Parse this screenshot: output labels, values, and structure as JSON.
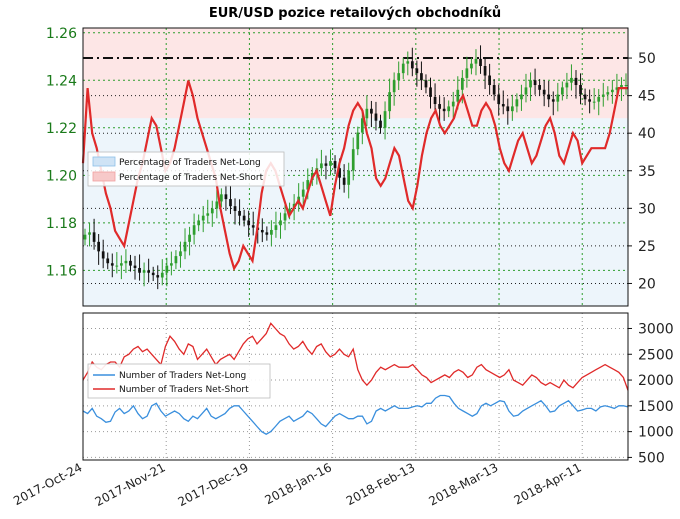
{
  "chart_data": [
    {
      "type": "line",
      "title": "EUR/USD pozice retailových obchodníků",
      "x_ticks": [
        "2017-Oct-24",
        "2017-Nov-21",
        "2017-Dec-19",
        "2018-Jan-16",
        "2018-Feb-13",
        "2018-Mar-13",
        "2018-Apr-11"
      ],
      "price_axis": {
        "side": "left",
        "color": "#1a7a1a",
        "ticks": [
          1.16,
          1.18,
          1.2,
          1.22,
          1.24,
          1.26
        ],
        "range": [
          1.145,
          1.262
        ]
      },
      "percent_axis": {
        "side": "right",
        "ticks": [
          20,
          25,
          30,
          35,
          40,
          45,
          50
        ],
        "range": [
          17,
          54
        ]
      },
      "price_series": {
        "style": "candlestick",
        "colors": {
          "up": "#2e9e2e",
          "down": "#111111"
        },
        "close": [
          1.175,
          1.176,
          1.172,
          1.168,
          1.165,
          1.163,
          1.162,
          1.162,
          1.163,
          1.164,
          1.162,
          1.161,
          1.159,
          1.16,
          1.159,
          1.158,
          1.157,
          1.159,
          1.162,
          1.163,
          1.166,
          1.168,
          1.172,
          1.175,
          1.179,
          1.181,
          1.183,
          1.184,
          1.186,
          1.189,
          1.192,
          1.19,
          1.187,
          1.185,
          1.183,
          1.181,
          1.179,
          1.178,
          1.177,
          1.176,
          1.175,
          1.177,
          1.179,
          1.181,
          1.184,
          1.186,
          1.188,
          1.191,
          1.194,
          1.198,
          1.201,
          1.203,
          1.205,
          1.204,
          1.206,
          1.203,
          1.199,
          1.196,
          1.202,
          1.211,
          1.218,
          1.224,
          1.228,
          1.226,
          1.223,
          1.22,
          1.227,
          1.235,
          1.24,
          1.243,
          1.247,
          1.248,
          1.245,
          1.243,
          1.24,
          1.237,
          1.233,
          1.23,
          1.228,
          1.227,
          1.229,
          1.231,
          1.236,
          1.241,
          1.245,
          1.247,
          1.249,
          1.246,
          1.242,
          1.238,
          1.234,
          1.23,
          1.229,
          1.227,
          1.229,
          1.232,
          1.234,
          1.237,
          1.24,
          1.238,
          1.236,
          1.234,
          1.232,
          1.231,
          1.234,
          1.237,
          1.239,
          1.241,
          1.238,
          1.234,
          1.232,
          1.231,
          1.231,
          1.233,
          1.234,
          1.235,
          1.236,
          1.237,
          1.238,
          1.238
        ],
        "ohlc_note": "daily candles, Oct 2017 – Apr 2018"
      },
      "series": [
        {
          "name": "Percentage of Traders Net-Long",
          "fill": "#cfe3f5",
          "line": "#8cc0e8"
        },
        {
          "name": "Percentage of Traders Net-Short",
          "fill": "#f7c9c9",
          "line": "#e02a2a",
          "values": [
            36,
            46,
            40,
            38,
            35,
            32,
            30,
            27,
            26,
            25,
            28,
            31,
            34,
            36,
            39,
            42,
            41,
            38,
            35,
            36,
            38,
            41,
            44,
            47,
            45,
            42,
            40,
            38,
            36,
            34,
            30,
            27,
            24,
            22,
            23,
            25,
            24,
            23,
            27,
            32,
            35,
            36,
            35,
            33,
            31,
            29,
            30,
            31,
            30,
            32,
            34,
            35,
            33,
            31,
            29,
            33,
            36,
            38,
            41,
            43,
            44,
            43,
            40,
            38,
            34,
            33,
            34,
            36,
            38,
            37,
            34,
            31,
            30,
            33,
            37,
            40,
            42,
            43,
            41,
            40,
            41,
            42,
            44,
            45,
            43,
            41,
            41,
            43,
            44,
            43,
            41,
            38,
            36,
            35,
            37,
            39,
            40,
            38,
            36,
            37,
            39,
            41,
            42,
            40,
            37,
            36,
            38,
            40,
            39,
            36,
            37,
            38,
            38,
            38,
            38,
            40,
            43,
            46,
            46,
            46
          ]
        }
      ],
      "reference_lines": [
        {
          "value": 50,
          "style": "dash-dot",
          "color": "#111111"
        }
      ],
      "grid": true,
      "legend": "center-left"
    },
    {
      "type": "line",
      "x_ticks": [
        "2017-Oct-24",
        "2017-Nov-21",
        "2017-Dec-19",
        "2018-Jan-16",
        "2018-Feb-13",
        "2018-Mar-13",
        "2018-Apr-11"
      ],
      "y_axis": {
        "side": "right",
        "ticks": [
          500,
          1000,
          1500,
          2000,
          2500,
          3000
        ],
        "range": [
          450,
          3300
        ]
      },
      "series": [
        {
          "name": "Number of Traders Net-Long",
          "color": "#3a8fdd",
          "values": [
            1400,
            1350,
            1450,
            1300,
            1250,
            1180,
            1200,
            1380,
            1450,
            1350,
            1400,
            1500,
            1350,
            1250,
            1300,
            1500,
            1550,
            1400,
            1300,
            1350,
            1400,
            1350,
            1250,
            1200,
            1300,
            1250,
            1350,
            1450,
            1300,
            1250,
            1300,
            1350,
            1450,
            1500,
            1500,
            1400,
            1300,
            1200,
            1100,
            1000,
            950,
            1000,
            1100,
            1200,
            1250,
            1300,
            1200,
            1250,
            1300,
            1400,
            1350,
            1250,
            1150,
            1100,
            1200,
            1300,
            1350,
            1300,
            1250,
            1250,
            1300,
            1300,
            1150,
            1200,
            1400,
            1450,
            1400,
            1450,
            1500,
            1450,
            1450,
            1450,
            1480,
            1500,
            1480,
            1550,
            1550,
            1650,
            1700,
            1700,
            1680,
            1550,
            1450,
            1400,
            1350,
            1300,
            1350,
            1500,
            1550,
            1500,
            1550,
            1600,
            1580,
            1400,
            1300,
            1320,
            1400,
            1450,
            1500,
            1550,
            1600,
            1500,
            1380,
            1400,
            1500,
            1550,
            1600,
            1500,
            1400,
            1420,
            1450,
            1450,
            1400,
            1480,
            1500,
            1480,
            1450,
            1500,
            1500,
            1480
          ]
        },
        {
          "name": "Number of Traders Net-Short",
          "color": "#e02a2a",
          "values": [
            2000,
            2150,
            2350,
            2250,
            2200,
            2300,
            2350,
            2350,
            2250,
            2450,
            2500,
            2600,
            2650,
            2550,
            2600,
            2500,
            2400,
            2300,
            2650,
            2850,
            2750,
            2600,
            2500,
            2700,
            2650,
            2400,
            2500,
            2600,
            2450,
            2300,
            2400,
            2450,
            2500,
            2400,
            2550,
            2700,
            2800,
            2850,
            2700,
            2800,
            2900,
            3100,
            3000,
            2900,
            2850,
            2700,
            2600,
            2650,
            2750,
            2600,
            2500,
            2650,
            2700,
            2550,
            2450,
            2500,
            2600,
            2500,
            2450,
            2600,
            2200,
            2000,
            1900,
            2000,
            2150,
            2250,
            2200,
            2250,
            2300,
            2250,
            2250,
            2250,
            2300,
            2200,
            2100,
            2050,
            1950,
            2000,
            2050,
            2100,
            2050,
            2150,
            2200,
            2150,
            2050,
            2100,
            2250,
            2300,
            2200,
            2150,
            2100,
            2050,
            2100,
            2200,
            2000,
            1950,
            1900,
            2000,
            2100,
            2050,
            1950,
            1900,
            1950,
            1900,
            1850,
            2000,
            1900,
            1850,
            1950,
            2050,
            2100,
            2150,
            2200,
            2250,
            2300,
            2250,
            2200,
            2150,
            2050,
            1800
          ]
        }
      ],
      "grid": true,
      "legend": "center-left"
    }
  ]
}
